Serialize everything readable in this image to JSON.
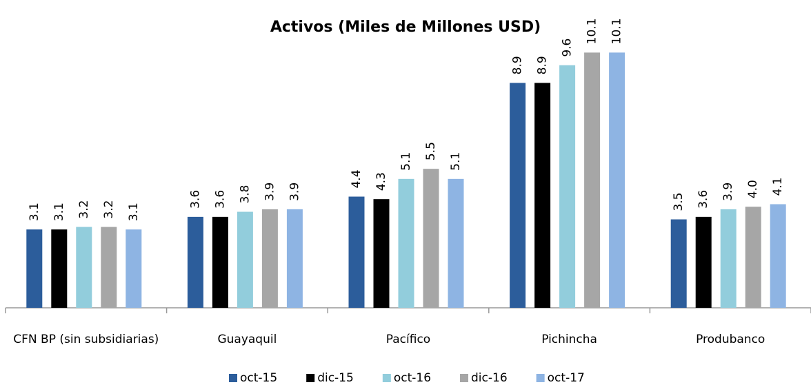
{
  "chart_data": {
    "type": "bar",
    "title": "Activos (Miles de Millones USD)",
    "categories": [
      "CFN BP (sin subsidiarias)",
      "Guayaquil",
      "Pacífico",
      "Pichincha",
      "Produbanco"
    ],
    "series": [
      {
        "name": "oct-15",
        "color": "#2c5d9b",
        "values": [
          3.1,
          3.6,
          4.4,
          8.9,
          3.5
        ]
      },
      {
        "name": "dic-15",
        "color": "#000000",
        "values": [
          3.1,
          3.6,
          4.3,
          8.9,
          3.6
        ]
      },
      {
        "name": "oct-16",
        "color": "#92cddc",
        "values": [
          3.2,
          3.8,
          5.1,
          9.6,
          3.9
        ]
      },
      {
        "name": "dic-16",
        "color": "#a6a6a6",
        "values": [
          3.2,
          3.9,
          5.5,
          10.1,
          4.0
        ],
        "value_labels": [
          "3.2",
          "3.9",
          "5.5",
          "10.1",
          "4.0"
        ]
      },
      {
        "name": "oct-17",
        "color": "#8eb4e3",
        "values": [
          3.1,
          3.9,
          5.1,
          10.1,
          4.1
        ]
      }
    ],
    "legend": "bottom"
  }
}
